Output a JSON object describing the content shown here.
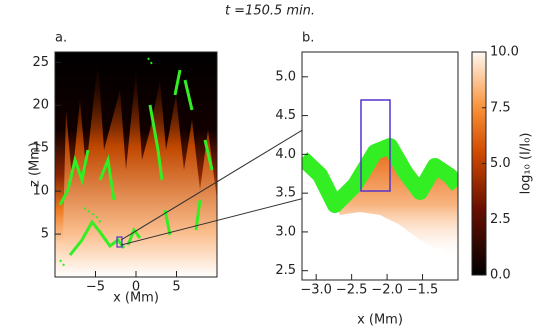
{
  "title": "t =150.5 min.",
  "chart_data": [
    {
      "type": "heatmap",
      "panel_label": "a.",
      "xlabel": "x (Mm)",
      "ylabel": "z (Mm)",
      "xlim": [
        -10,
        10
      ],
      "ylim": [
        0,
        26.2
      ],
      "xticks": [
        {
          "value": -5,
          "label": "−5"
        },
        0,
        5
      ],
      "yticks": [
        5,
        10,
        15,
        20,
        25
      ]
    },
    {
      "type": "heatmap",
      "panel_label": "b.",
      "xlabel": "x (Mm)",
      "xlim": [
        -3.2,
        -1.0
      ],
      "ylim": [
        2.38,
        5.32
      ],
      "xticks": [
        {
          "value": -3,
          "label": "−3.0"
        },
        {
          "value": -2.5,
          "label": "−2.5"
        },
        {
          "value": -2,
          "label": "−2.0"
        },
        {
          "value": -1.5,
          "label": "−1.5"
        }
      ],
      "yticks": [
        2.5,
        {
          "value": 3,
          "label": "3.0"
        },
        3.5,
        {
          "value": 4,
          "label": "4.0"
        },
        4.5,
        {
          "value": 5,
          "label": "5.0"
        }
      ]
    },
    {
      "type": "colorbar",
      "ylabel": "log₁₀ (I/I₀)",
      "ylim": [
        0,
        10
      ],
      "yticks": [
        {
          "value": 0,
          "label": "0.0"
        },
        2.5,
        {
          "value": 5,
          "label": "5.0"
        },
        7.5,
        {
          "value": 10,
          "label": "10.0"
        }
      ]
    }
  ]
}
